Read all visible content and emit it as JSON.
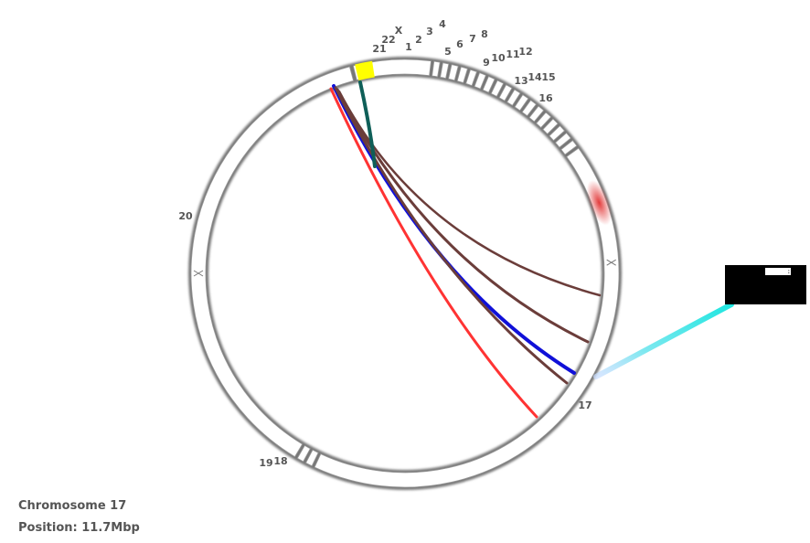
{
  "info": {
    "chromosome_label": "Chromosome 17",
    "position_label": "Position: 11.7Mbp"
  },
  "popup": {
    "value": ":"
  },
  "chromosomes": [
    {
      "name": "21"
    },
    {
      "name": "22"
    },
    {
      "name": "X"
    },
    {
      "name": "1"
    },
    {
      "name": "2"
    },
    {
      "name": "3"
    },
    {
      "name": "4"
    },
    {
      "name": "5"
    },
    {
      "name": "6"
    },
    {
      "name": "7"
    },
    {
      "name": "8"
    },
    {
      "name": "9"
    },
    {
      "name": "10"
    },
    {
      "name": "11"
    },
    {
      "name": "12"
    },
    {
      "name": "13"
    },
    {
      "name": "14"
    },
    {
      "name": "15"
    },
    {
      "name": "16"
    },
    {
      "name": "17"
    },
    {
      "name": "18"
    },
    {
      "name": "19"
    },
    {
      "name": "20"
    }
  ],
  "highlight": {
    "chromosome": "21",
    "color": "#ffff00"
  },
  "colors": {
    "ring_fill": "#ffffff",
    "ring_shadow": "#777777",
    "hot_region": "#e23a3a",
    "link_red": "#ff3333",
    "link_blue": "#1010d8",
    "link_brown": "#6b3d3a",
    "link_teal": "#0f5f58",
    "pointer_cyan": "#1fe6e0",
    "popup_bg": "#000000"
  }
}
